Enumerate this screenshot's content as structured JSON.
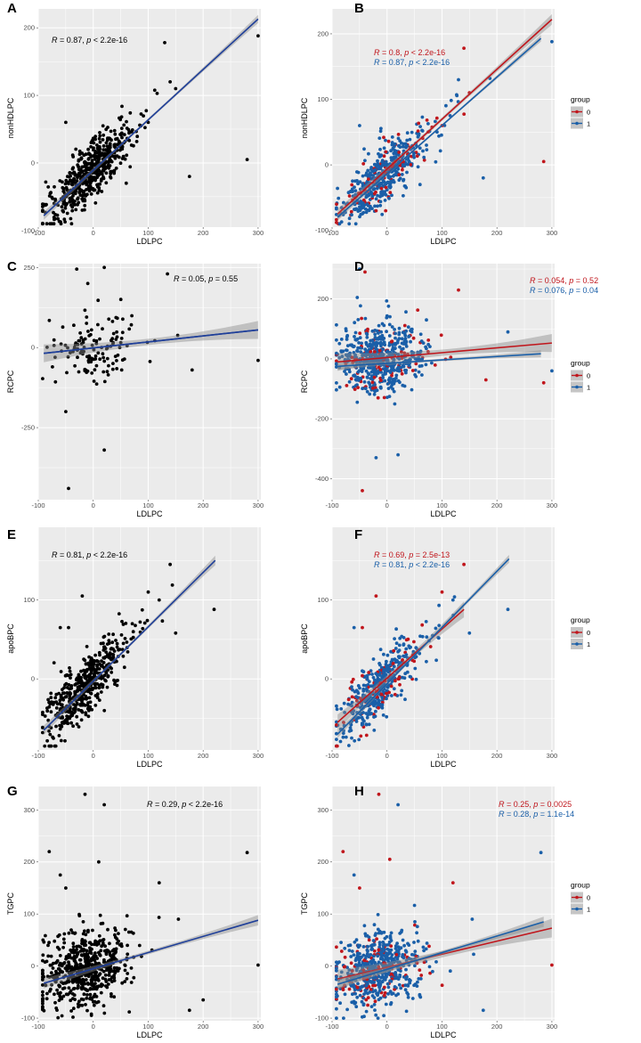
{
  "figure": {
    "colors": {
      "panel_bg": "#ebebeb",
      "grid_major": "#ffffff",
      "point_all": "#000000",
      "line_all": "#1f3f99",
      "ribbon": "#8c8c8c",
      "group0": "#c0161c",
      "group1": "#1a5fa8"
    }
  },
  "chart_data": [
    {
      "id": "A",
      "letter": "A",
      "type": "scatter",
      "grouped": false,
      "xlabel": "LDLPC",
      "ylabel": "nonHDLPC",
      "xlim": [
        -100,
        305
      ],
      "ylim": [
        -95,
        228
      ],
      "xticks": [
        -100,
        0,
        100,
        200,
        300
      ],
      "yticks": [
        -100,
        0,
        100,
        200
      ],
      "annotations": [
        {
          "group": "all",
          "r": "0.87",
          "p": "p < 2.2e-16",
          "prefix": "R = ",
          "sep": ", "
        }
      ],
      "fits": [
        {
          "group": "all",
          "x": [
            -90,
            300
          ],
          "y": [
            -78,
            213
          ],
          "se": 6
        }
      ],
      "n_points": 520,
      "x_center": -10,
      "x_spread": 38,
      "slope": 0.75,
      "intercept": -10,
      "noise": 20,
      "outliers": [
        [
          130,
          178
        ],
        [
          300,
          188
        ],
        [
          280,
          5
        ],
        [
          175,
          -20
        ],
        [
          150,
          110
        ],
        [
          140,
          120
        ],
        [
          100,
          60
        ],
        [
          60,
          -30
        ],
        [
          -20,
          -70
        ],
        [
          -50,
          60
        ]
      ]
    },
    {
      "id": "B",
      "letter": "B",
      "type": "scatter",
      "grouped": true,
      "xlabel": "LDLPC",
      "ylabel": "nonHDLPC",
      "xlim": [
        -100,
        305
      ],
      "ylim": [
        -95,
        238
      ],
      "xticks": [
        -100,
        0,
        100,
        200,
        300
      ],
      "yticks": [
        -100,
        0,
        100,
        200
      ],
      "annotations": [
        {
          "group": "0",
          "r": "0.8",
          "p": "p < 2.2e-16",
          "prefix": "R = ",
          "sep": ", "
        },
        {
          "group": "1",
          "r": "0.87",
          "p": "p < 2.2e-16",
          "prefix": "R = ",
          "sep": ", "
        }
      ],
      "fits": [
        {
          "group": "0",
          "x": [
            -90,
            300
          ],
          "y": [
            -75,
            222
          ],
          "se": 8
        },
        {
          "group": "1",
          "x": [
            -90,
            280
          ],
          "y": [
            -80,
            193
          ],
          "se": 5
        }
      ],
      "n_points": 520,
      "x_center": -10,
      "x_spread": 38,
      "slope": 0.75,
      "intercept": -10,
      "noise": 20,
      "outliers": [
        [
          140,
          178
        ],
        [
          300,
          188
        ],
        [
          285,
          5
        ],
        [
          175,
          -20
        ],
        [
          150,
          110
        ],
        [
          130,
          130
        ],
        [
          100,
          60
        ],
        [
          60,
          -30
        ],
        [
          -20,
          -70
        ],
        [
          -50,
          60
        ]
      ]
    },
    {
      "id": "C",
      "letter": "C",
      "type": "scatter",
      "grouped": false,
      "xlabel": "LDLPC",
      "ylabel": "RCPC",
      "xlim": [
        -100,
        305
      ],
      "ylim": [
        -475,
        262
      ],
      "xticks": [
        -100,
        0,
        100,
        200,
        300
      ],
      "yticks": [
        -250,
        0,
        250
      ],
      "annotations": [
        {
          "group": "all",
          "r": "0.05",
          "p": "p = 0.55",
          "prefix": "R = ",
          "sep": ", "
        }
      ],
      "fits": [
        {
          "group": "all",
          "x": [
            -90,
            300
          ],
          "y": [
            -18,
            55
          ],
          "se": 28
        },
        {
          "group": "all",
          "x": [
            -90,
            300
          ],
          "y": [
            -18,
            55
          ],
          "se": 0
        }
      ],
      "n_points": 130,
      "x_center": 5,
      "x_spread": 35,
      "slope": 0.18,
      "intercept": 0,
      "noise": 45,
      "outliers": [
        [
          -45,
          -440
        ],
        [
          20,
          -320
        ],
        [
          -50,
          -200
        ],
        [
          135,
          230
        ],
        [
          300,
          -40
        ],
        [
          180,
          -70
        ],
        [
          -10,
          200
        ],
        [
          20,
          250
        ],
        [
          -30,
          245
        ]
      ]
    },
    {
      "id": "D",
      "letter": "D",
      "type": "scatter",
      "grouped": true,
      "xlabel": "LDLPC",
      "ylabel": "RCPC",
      "xlim": [
        -100,
        305
      ],
      "ylim": [
        -470,
        318
      ],
      "xticks": [
        -100,
        0,
        100,
        200,
        300
      ],
      "yticks": [
        -400,
        -200,
        0,
        200
      ],
      "annotations": [
        {
          "group": "0",
          "r": "0.054",
          "p": "p = 0.52",
          "prefix": "R = ",
          "sep": ", "
        },
        {
          "group": "1",
          "r": "0.076",
          "p": "p = 0.04",
          "prefix": "R = ",
          "sep": ", "
        }
      ],
      "fits": [
        {
          "group": "0",
          "x": [
            -90,
            300
          ],
          "y": [
            -10,
            53
          ],
          "se": 30
        },
        {
          "group": "1",
          "x": [
            -90,
            280
          ],
          "y": [
            -25,
            17
          ],
          "se": 12
        }
      ],
      "n_points": 620,
      "x_center": -15,
      "x_spread": 38,
      "slope": 0.15,
      "intercept": 0,
      "noise": 60,
      "outliers": [
        [
          -45,
          -440
        ],
        [
          20,
          -320
        ],
        [
          -40,
          290
        ],
        [
          -50,
          300
        ],
        [
          130,
          230
        ],
        [
          300,
          -40
        ],
        [
          180,
          -70
        ],
        [
          220,
          90
        ],
        [
          285,
          -80
        ],
        [
          -20,
          -330
        ]
      ]
    },
    {
      "id": "E",
      "letter": "E",
      "type": "scatter",
      "grouped": false,
      "xlabel": "LDLPC",
      "ylabel": "apoBPC",
      "xlim": [
        -100,
        305
      ],
      "ylim": [
        -90,
        192
      ],
      "xticks": [
        -100,
        0,
        100,
        200,
        300
      ],
      "yticks": [
        0,
        100
      ],
      "annotations": [
        {
          "group": "all",
          "r": "0.81",
          "p": "p < 2.2e-16",
          "prefix": "R = ",
          "sep": ", "
        }
      ],
      "fits": [
        {
          "group": "all",
          "x": [
            -90,
            222
          ],
          "y": [
            -65,
            150
          ],
          "se": 6
        }
      ],
      "n_points": 480,
      "x_center": -20,
      "x_spread": 35,
      "slope": 0.7,
      "intercept": 0,
      "noise": 18,
      "outliers": [
        [
          140,
          145
        ],
        [
          220,
          88
        ],
        [
          100,
          110
        ],
        [
          -60,
          65
        ],
        [
          -45,
          65
        ],
        [
          150,
          58
        ],
        [
          -20,
          105
        ],
        [
          120,
          100
        ]
      ]
    },
    {
      "id": "F",
      "letter": "F",
      "type": "scatter",
      "grouped": true,
      "xlabel": "LDLPC",
      "ylabel": "apoBPC",
      "xlim": [
        -100,
        305
      ],
      "ylim": [
        -90,
        192
      ],
      "xticks": [
        -100,
        0,
        100,
        200,
        300
      ],
      "yticks": [
        0,
        100
      ],
      "annotations": [
        {
          "group": "0",
          "r": "0.69",
          "p": "p = 2.5e-13",
          "prefix": "R = ",
          "sep": ", "
        },
        {
          "group": "1",
          "r": "0.81",
          "p": "p < 2.2e-16",
          "prefix": "R = ",
          "sep": ", "
        }
      ],
      "fits": [
        {
          "group": "0",
          "x": [
            -90,
            140
          ],
          "y": [
            -55,
            88
          ],
          "se": 10
        },
        {
          "group": "1",
          "x": [
            -90,
            222
          ],
          "y": [
            -70,
            152
          ],
          "se": 5
        }
      ],
      "n_points": 480,
      "x_center": -20,
      "x_spread": 35,
      "slope": 0.7,
      "intercept": 0,
      "noise": 18,
      "outliers": [
        [
          140,
          145
        ],
        [
          220,
          88
        ],
        [
          100,
          110
        ],
        [
          -60,
          65
        ],
        [
          -45,
          65
        ],
        [
          150,
          58
        ],
        [
          -20,
          105
        ],
        [
          120,
          100
        ]
      ]
    },
    {
      "id": "G",
      "letter": "G",
      "type": "scatter",
      "grouped": false,
      "xlabel": "LDLPC",
      "ylabel": "TGPC",
      "xlim": [
        -100,
        305
      ],
      "ylim": [
        -105,
        345
      ],
      "xticks": [
        -100,
        0,
        100,
        200,
        300
      ],
      "yticks": [
        -100,
        0,
        100,
        200,
        300
      ],
      "annotations": [
        {
          "group": "all",
          "r": "0.29",
          "p": "p < 2.2e-16",
          "prefix": "R = ",
          "sep": ", "
        }
      ],
      "fits": [
        {
          "group": "all",
          "x": [
            -90,
            300
          ],
          "y": [
            -33,
            88
          ],
          "se": 10
        }
      ],
      "n_points": 600,
      "x_center": -20,
      "x_spread": 38,
      "slope": 0.3,
      "intercept": 0,
      "noise": 35,
      "outliers": [
        [
          -15,
          330
        ],
        [
          20,
          310
        ],
        [
          -80,
          220
        ],
        [
          280,
          218
        ],
        [
          10,
          200
        ],
        [
          -60,
          175
        ],
        [
          120,
          160
        ],
        [
          155,
          90
        ],
        [
          300,
          2
        ],
        [
          175,
          -85
        ],
        [
          200,
          -65
        ],
        [
          -50,
          150
        ]
      ]
    },
    {
      "id": "H",
      "letter": "H",
      "type": "scatter",
      "grouped": true,
      "xlabel": "LDLPC",
      "ylabel": "TGPC",
      "xlim": [
        -100,
        305
      ],
      "ylim": [
        -105,
        345
      ],
      "xticks": [
        -100,
        0,
        100,
        200,
        300
      ],
      "yticks": [
        -100,
        0,
        100,
        200,
        300
      ],
      "annotations": [
        {
          "group": "0",
          "r": "0.25",
          "p": "p = 0.0025",
          "prefix": "R = ",
          "sep": ", "
        },
        {
          "group": "1",
          "r": "0.28",
          "p": "p = 1.1e-14",
          "prefix": "R = ",
          "sep": ", "
        }
      ],
      "fits": [
        {
          "group": "0",
          "x": [
            -90,
            300
          ],
          "y": [
            -25,
            73
          ],
          "se": 18
        },
        {
          "group": "1",
          "x": [
            -90,
            285
          ],
          "y": [
            -35,
            85
          ],
          "se": 10
        }
      ],
      "n_points": 600,
      "x_center": -20,
      "x_spread": 38,
      "slope": 0.3,
      "intercept": 0,
      "noise": 35,
      "outliers": [
        [
          -15,
          330
        ],
        [
          20,
          310
        ],
        [
          -80,
          220
        ],
        [
          280,
          218
        ],
        [
          5,
          205
        ],
        [
          -60,
          175
        ],
        [
          120,
          160
        ],
        [
          155,
          90
        ],
        [
          300,
          2
        ],
        [
          175,
          -85
        ],
        [
          -50,
          150
        ]
      ]
    }
  ],
  "legend": {
    "title": "group",
    "items": [
      {
        "key": "0",
        "label": "0"
      },
      {
        "key": "1",
        "label": "1"
      }
    ]
  }
}
